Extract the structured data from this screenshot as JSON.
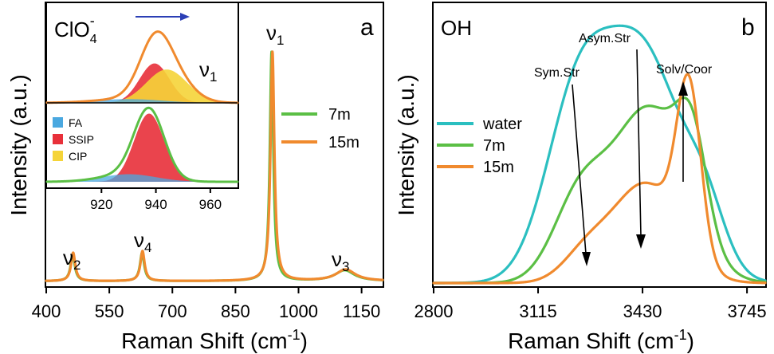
{
  "colors": {
    "water": "#2BBFC0",
    "m7": "#5BBF45",
    "m15": "#F08A2E",
    "FA": "#4AA8E0",
    "SSIP": "#E8303A",
    "CIP": "#F5D438",
    "arrow_blue": "#2B3FB5"
  },
  "chart_data": [
    {
      "id": "a",
      "type": "line",
      "panel_letter": "a",
      "xlabel_main": "Raman Shift (cm",
      "xlabel_sup": "-1",
      "xlabel_end": ")",
      "ylabel": "Intensity (a.u.)",
      "xlim": [
        400,
        1200
      ],
      "xticks": [
        "400",
        "550",
        "700",
        "850",
        "1000",
        "1150"
      ],
      "xtick_values": [
        400,
        550,
        700,
        850,
        1000,
        1150
      ],
      "peak_labels": [
        {
          "greek": "ν",
          "sub": "1",
          "x": 937
        },
        {
          "greek": "ν",
          "sub": "2",
          "x": 463
        },
        {
          "greek": "ν",
          "sub": "4",
          "x": 628
        },
        {
          "greek": "ν",
          "sub": "3",
          "x": 1110
        }
      ],
      "legend": {
        "placement": "right",
        "entries": [
          "7m",
          "15m"
        ]
      },
      "series": [
        {
          "name": "7m",
          "color": "#5BBF45",
          "peaks": [
            {
              "center": 463,
              "height": 0.112,
              "width": 6
            },
            {
              "center": 628,
              "height": 0.118,
              "width": 6
            },
            {
              "center": 936,
              "height": 0.955,
              "width": 5
            },
            {
              "center": 1110,
              "height": 0.045,
              "width": 28
            }
          ]
        },
        {
          "name": "15m",
          "color": "#F08A2E",
          "peaks": [
            {
              "center": 464,
              "height": 0.118,
              "width": 6
            },
            {
              "center": 629,
              "height": 0.125,
              "width": 6
            },
            {
              "center": 938,
              "height": 0.955,
              "width": 5.5
            },
            {
              "center": 1112,
              "height": 0.048,
              "width": 28
            }
          ]
        }
      ],
      "ylim": [
        0,
        1.18
      ]
    },
    {
      "id": "a-inset",
      "type": "area",
      "title_main": "ClO",
      "title_sub": "4",
      "title_sup": "-",
      "mode_label": {
        "greek": "ν",
        "sub": "1"
      },
      "xlim": [
        900,
        970
      ],
      "xticks": [
        "920",
        "940",
        "960"
      ],
      "xtick_values": [
        920,
        940,
        960
      ],
      "legend": {
        "placement": "bottom-left",
        "entries": [
          "FA",
          "SSIP",
          "CIP"
        ]
      },
      "top_trace": {
        "envelope": "#F08A2E",
        "components": [
          {
            "name": "FA",
            "center": 930,
            "height": 0.05,
            "width": 12
          },
          {
            "name": "SSIP",
            "center": 939.5,
            "height": 0.52,
            "width": 5.5
          },
          {
            "name": "CIP",
            "center": 944,
            "height": 0.44,
            "width": 7.5
          }
        ]
      },
      "bottom_trace": {
        "envelope": "#5BBF45",
        "components": [
          {
            "name": "FA",
            "center": 930,
            "height": 0.1,
            "width": 10
          },
          {
            "name": "SSIP",
            "center": 937.5,
            "height": 0.9,
            "width": 5.5
          }
        ]
      }
    },
    {
      "id": "b",
      "type": "line",
      "panel_letter": "b",
      "region_label": "OH",
      "xlabel_main": "Raman Shift (cm",
      "xlabel_sup": "-1",
      "xlabel_end": ")",
      "ylabel": "Intensity (a.u.)",
      "xlim": [
        2800,
        3800
      ],
      "xticks": [
        "2800",
        "3115",
        "3430",
        "3745"
      ],
      "xtick_values": [
        2800,
        3115,
        3430,
        3745
      ],
      "ylim": [
        0,
        1.0
      ],
      "annotations": [
        "Sym.Str",
        "Asym.Str",
        "Solv/Coor"
      ],
      "legend": {
        "placement": "left",
        "entries": [
          "water",
          "7m",
          "15m"
        ]
      },
      "series": [
        {
          "name": "water",
          "color": "#2BBFC0",
          "components": [
            {
              "center": 3230,
              "height": 0.6,
              "width": 95
            },
            {
              "center": 3430,
              "height": 0.83,
              "width": 120
            },
            {
              "center": 3620,
              "height": 0.18,
              "width": 60
            }
          ]
        },
        {
          "name": "7m",
          "color": "#5BBF45",
          "components": [
            {
              "center": 3240,
              "height": 0.29,
              "width": 80
            },
            {
              "center": 3450,
              "height": 0.63,
              "width": 110
            },
            {
              "center": 3580,
              "height": 0.32,
              "width": 45
            }
          ]
        },
        {
          "name": "15m",
          "color": "#F08A2E",
          "components": [
            {
              "center": 3260,
              "height": 0.1,
              "width": 70
            },
            {
              "center": 3440,
              "height": 0.36,
              "width": 100
            },
            {
              "center": 3570,
              "height": 0.6,
              "width": 36
            }
          ]
        }
      ]
    }
  ]
}
